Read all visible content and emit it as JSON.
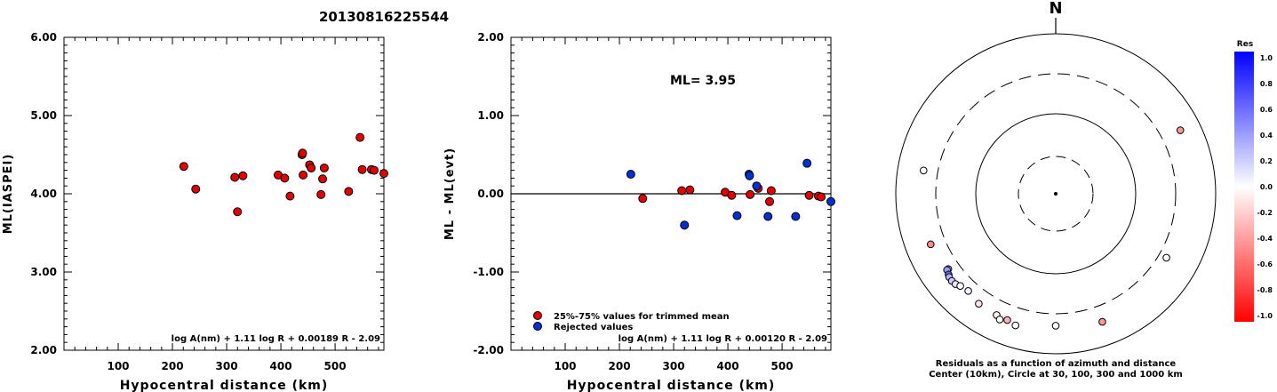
{
  "title": "20130816225544",
  "north_label": "N",
  "chart_data": [
    {
      "type": "scatter",
      "xlabel": "Hypocentral distance (km)",
      "ylabel": "ML(IASPEI)",
      "xlim": [
        0,
        590
      ],
      "ylim": [
        2.0,
        6.0
      ],
      "x_ticks": [
        100,
        200,
        300,
        400,
        500
      ],
      "y_ticks": [
        "2.00",
        "3.00",
        "4.00",
        "5.00",
        "6.00"
      ],
      "formula": "log A(nm) + 1.11 log R + 0.00189 R - 2.09",
      "series": [
        {
          "color": "#e00000",
          "points": [
            [
              221,
              4.35
            ],
            [
              243,
              4.06
            ],
            [
              315,
              4.21
            ],
            [
              320,
              3.77
            ],
            [
              330,
              4.23
            ],
            [
              395,
              4.24
            ],
            [
              407,
              4.2
            ],
            [
              417,
              3.97
            ],
            [
              439,
              4.5
            ],
            [
              440,
              4.52
            ],
            [
              441,
              4.24
            ],
            [
              453,
              4.37
            ],
            [
              456,
              4.33
            ],
            [
              474,
              3.99
            ],
            [
              477,
              4.19
            ],
            [
              480,
              4.33
            ],
            [
              525,
              4.03
            ],
            [
              546,
              4.72
            ],
            [
              550,
              4.31
            ],
            [
              567,
              4.31
            ],
            [
              572,
              4.3
            ],
            [
              590,
              4.26
            ]
          ]
        }
      ]
    },
    {
      "type": "scatter",
      "xlabel": "Hypocentral distance (km)",
      "ylabel": "ML - ML(evt)",
      "xlim": [
        0,
        590
      ],
      "ylim": [
        -2.0,
        2.0
      ],
      "x_ticks": [
        100,
        200,
        300,
        400,
        500
      ],
      "y_ticks": [
        "-2.00",
        "-1.00",
        "0.00",
        "1.00",
        "2.00"
      ],
      "annotation": "ML=  3.95",
      "reference_line": 0.0,
      "formula": "log A(nm) + 1.11 log R + 0.00120 R - 2.09",
      "legend": [
        {
          "label": "25%-75% values for trimmed mean",
          "color": "#e00000"
        },
        {
          "label": "Rejected values",
          "color": "#0030d0"
        }
      ],
      "series": [
        {
          "name": "25%-75% values for trimmed mean",
          "color": "#e00000",
          "points": [
            [
              243,
              -0.06
            ],
            [
              315,
              0.04
            ],
            [
              330,
              0.05
            ],
            [
              395,
              0.02
            ],
            [
              407,
              -0.02
            ],
            [
              441,
              -0.01
            ],
            [
              456,
              0.07
            ],
            [
              477,
              -0.1
            ],
            [
              480,
              0.04
            ],
            [
              550,
              -0.02
            ],
            [
              567,
              -0.03
            ],
            [
              572,
              -0.04
            ]
          ]
        },
        {
          "name": "Rejected values",
          "color": "#0030d0",
          "points": [
            [
              221,
              0.25
            ],
            [
              320,
              -0.4
            ],
            [
              417,
              -0.28
            ],
            [
              439,
              0.25
            ],
            [
              440,
              0.23
            ],
            [
              453,
              0.1
            ],
            [
              474,
              -0.29
            ],
            [
              525,
              -0.29
            ],
            [
              546,
              0.39
            ],
            [
              590,
              -0.1
            ]
          ]
        }
      ]
    },
    {
      "type": "scatter",
      "subtype": "polar",
      "caption_line1": "Residuals as a function of azimuth and distance",
      "caption_line2": "Center (10km), Circle at 30, 100, 300 and 1000 km",
      "rings_km": [
        30,
        100,
        300,
        1000
      ],
      "colorbar": {
        "title": "Res",
        "ticks": [
          "1.0",
          "0.8",
          "0.6",
          "0.4",
          "0.2",
          "0.0",
          "-0.2",
          "-0.4",
          "-0.6",
          "-0.8",
          "-1.0"
        ],
        "max_color": "#0000ff",
        "mid_color": "#ffffff",
        "min_color": "#ff0000"
      },
      "points": [
        {
          "azimuth_deg": 63,
          "distance_km": 546,
          "residual": -0.4
        },
        {
          "azimuth_deg": 280,
          "distance_km": 460,
          "residual": 0.0
        },
        {
          "azimuth_deg": 248,
          "distance_km": 470,
          "residual": -0.45
        },
        {
          "azimuth_deg": 235,
          "distance_km": 420,
          "residual": 0.3
        },
        {
          "azimuth_deg": 235,
          "distance_km": 440,
          "residual": 0.4
        },
        {
          "azimuth_deg": 233,
          "distance_km": 460,
          "residual": 0.55
        },
        {
          "azimuth_deg": 232,
          "distance_km": 475,
          "residual": 0.3
        },
        {
          "azimuth_deg": 230,
          "distance_km": 480,
          "residual": 0.2
        },
        {
          "azimuth_deg": 228,
          "distance_km": 470,
          "residual": 0.1
        },
        {
          "azimuth_deg": 226,
          "distance_km": 440,
          "residual": 0.0
        },
        {
          "azimuth_deg": 222,
          "distance_km": 415,
          "residual": 0.05
        },
        {
          "azimuth_deg": 215,
          "distance_km": 460,
          "residual": -0.1
        },
        {
          "azimuth_deg": 206,
          "distance_km": 470,
          "residual": -0.05
        },
        {
          "azimuth_deg": 204,
          "distance_km": 510,
          "residual": 0.0
        },
        {
          "azimuth_deg": 201,
          "distance_km": 475,
          "residual": -0.3
        },
        {
          "azimuth_deg": 197,
          "distance_km": 510,
          "residual": 0.0
        },
        {
          "azimuth_deg": 180,
          "distance_km": 430,
          "residual": 0.0
        },
        {
          "azimuth_deg": 160,
          "distance_km": 490,
          "residual": -0.4
        },
        {
          "azimuth_deg": 120,
          "distance_km": 380,
          "residual": 0.0
        }
      ]
    }
  ]
}
